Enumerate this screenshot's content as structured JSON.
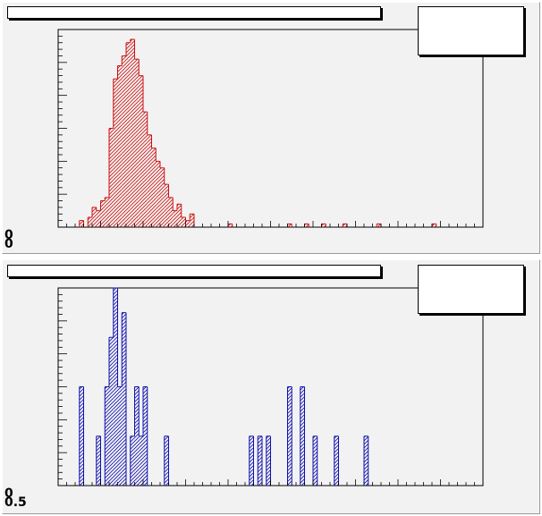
{
  "colors": {
    "pad_background": "#f2f2f2",
    "top_hist": "#cc1010",
    "bottom_hist": "#1010b0",
    "axis": "#000000"
  },
  "panels": [
    {
      "title": "",
      "stats_text": "",
      "y_tick_labels": [
        "0",
        "0"
      ]
    },
    {
      "title": "",
      "stats_text": "",
      "y_tick_labels": [
        "0",
        "0.5"
      ]
    }
  ],
  "chart_data": [
    {
      "type": "bar",
      "histogram": true,
      "fill_style": "hatched",
      "color": "#cc1010",
      "xlim": [
        0,
        100
      ],
      "ylim": [
        0,
        60
      ],
      "grid": false,
      "values": [
        0,
        0,
        0,
        0,
        0,
        2,
        0,
        3,
        6,
        5,
        8,
        9,
        30,
        45,
        49,
        52,
        56,
        57,
        51,
        46,
        35,
        28,
        24,
        20,
        18,
        13,
        9,
        5,
        7,
        3,
        2,
        4,
        0,
        0,
        0,
        0,
        0,
        0,
        0,
        0,
        1,
        0,
        0,
        0,
        0,
        0,
        0,
        0,
        0,
        0,
        0,
        0,
        0,
        0,
        1,
        0,
        0,
        0,
        1,
        0,
        0,
        0,
        1,
        0,
        0,
        0,
        0,
        1,
        0,
        0,
        0,
        0,
        0,
        0,
        0,
        1,
        0,
        0,
        0,
        0,
        0,
        0,
        0,
        0,
        0,
        0,
        0,
        0,
        1,
        0,
        0,
        0,
        0,
        0,
        0,
        0,
        0,
        0,
        0,
        0
      ],
      "title": "",
      "xlabel": "",
      "ylabel": ""
    },
    {
      "type": "bar",
      "histogram": true,
      "fill_style": "hatched",
      "color": "#1010b0",
      "xlim": [
        0,
        100
      ],
      "ylim": [
        0,
        8
      ],
      "grid": false,
      "values": [
        0,
        0,
        0,
        0,
        0,
        4,
        0,
        0,
        0,
        2,
        0,
        4,
        6,
        8,
        4,
        7,
        0,
        2,
        4,
        2,
        4,
        0,
        0,
        0,
        0,
        2,
        0,
        0,
        0,
        0,
        0,
        0,
        0,
        0,
        0,
        0,
        0,
        0,
        0,
        0,
        0,
        0,
        0,
        0,
        0,
        2,
        0,
        2,
        0,
        2,
        0,
        0,
        0,
        0,
        4,
        0,
        0,
        4,
        0,
        0,
        2,
        0,
        0,
        0,
        0,
        2,
        0,
        0,
        0,
        0,
        0,
        0,
        2,
        0,
        0,
        0,
        0,
        0,
        0,
        0,
        0,
        0,
        0,
        0,
        0,
        0,
        0,
        0,
        0,
        0,
        0,
        0,
        0,
        0,
        0,
        0,
        0,
        0,
        0,
        0
      ],
      "title": "",
      "xlabel": "",
      "ylabel": ""
    }
  ]
}
